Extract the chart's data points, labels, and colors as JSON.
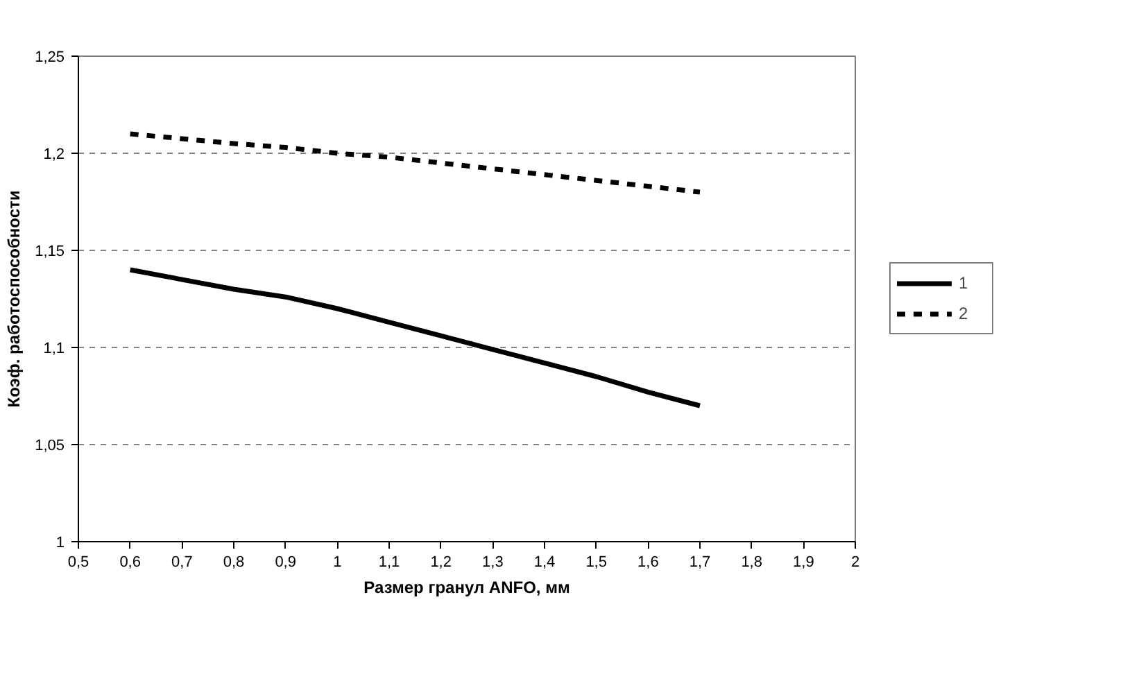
{
  "chart_data": {
    "type": "line",
    "xlabel": "Размер гранул ANFO, мм",
    "ylabel": "Коэф. работоспособности",
    "x": [
      0.6,
      0.8,
      0.9,
      1.0,
      1.1,
      1.2,
      1.3,
      1.4,
      1.5,
      1.6,
      1.7
    ],
    "series": [
      {
        "name": "1",
        "color": "#000000",
        "line_style": "solid",
        "values": [
          1.14,
          1.13,
          1.126,
          1.12,
          1.113,
          1.106,
          1.099,
          1.092,
          1.085,
          1.077,
          1.07
        ]
      },
      {
        "name": "2",
        "color": "#000000",
        "line_style": "dotted",
        "values": [
          1.21,
          1.205,
          1.203,
          1.2,
          1.198,
          1.195,
          1.192,
          1.189,
          1.186,
          1.183,
          1.18
        ]
      }
    ],
    "xlim": [
      0.5,
      2
    ],
    "ylim": [
      1,
      1.25
    ],
    "xticks": [
      {
        "value": 0.5,
        "label": "0,5"
      },
      {
        "value": 0.6,
        "label": "0,6"
      },
      {
        "value": 0.7,
        "label": "0,7"
      },
      {
        "value": 0.8,
        "label": "0,8"
      },
      {
        "value": 0.9,
        "label": "0,9"
      },
      1,
      {
        "value": 1.1,
        "label": "1,1"
      },
      {
        "value": 1.2,
        "label": "1,2"
      },
      {
        "value": 1.3,
        "label": "1,3"
      },
      {
        "value": 1.4,
        "label": "1,4"
      },
      {
        "value": 1.5,
        "label": "1,5"
      },
      {
        "value": 1.6,
        "label": "1,6"
      },
      {
        "value": 1.7,
        "label": "1,7"
      },
      {
        "value": 1.8,
        "label": "1,8"
      },
      {
        "value": 1.9,
        "label": "1,9"
      },
      2
    ],
    "yticks": [
      1,
      {
        "value": 1.05,
        "label": "1,05"
      },
      {
        "value": 1.1,
        "label": "1,1"
      },
      {
        "value": 1.15,
        "label": "1,15"
      },
      {
        "value": 1.2,
        "label": "1,2"
      },
      {
        "value": 1.25,
        "label": "1,25"
      }
    ],
    "grid": "y",
    "legend": "right",
    "marker": "none"
  }
}
